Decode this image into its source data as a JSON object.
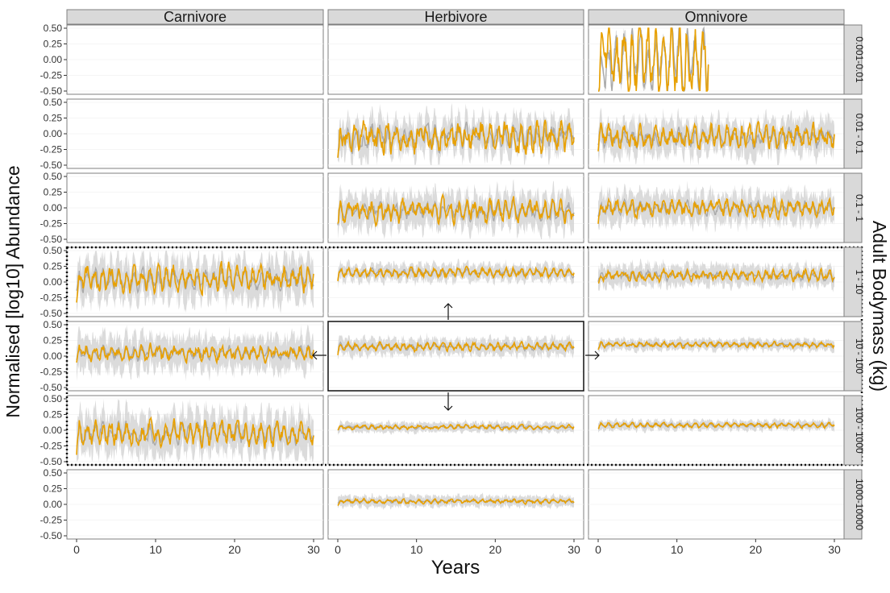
{
  "chart_data": {
    "type": "line",
    "xlabel": "Years",
    "ylabel": "Normalised [log10] Abundance",
    "facet_col_label": "Adult Bodymass (kg)",
    "columns": [
      "Carnivore",
      "Herbivore",
      "Omnivore"
    ],
    "rows": [
      "0.001-0.01",
      "0.01 - 0.1",
      "0.1 - 1",
      "1 - 10",
      "10 - 100",
      "100 - 1000",
      "1000-10000"
    ],
    "xlim": [
      0,
      30
    ],
    "ylim": [
      -0.5,
      0.5
    ],
    "x_ticks": [
      0,
      10,
      20,
      30
    ],
    "y_ticks": [
      "0.50",
      "0.25",
      "0.00",
      "-0.25",
      "-0.50"
    ],
    "series": [
      {
        "color": "#aaaaaa",
        "band_color": "#cfcfcf"
      },
      {
        "color": "#e8a000"
      }
    ],
    "panels": [
      {
        "col": "Omnivore",
        "row": "0.001-0.01",
        "present": true,
        "xmax": 14,
        "mean": 0.0,
        "amp": 0.9,
        "noise": 0.6,
        "band": 0.1
      },
      {
        "col": "Herbivore",
        "row": "0.01 - 0.1",
        "present": true,
        "mean": -0.05,
        "amp": 0.25,
        "noise": 0.3,
        "band": 0.25
      },
      {
        "col": "Omnivore",
        "row": "0.01 - 0.1",
        "present": true,
        "mean": -0.05,
        "amp": 0.2,
        "noise": 0.22,
        "band": 0.25
      },
      {
        "col": "Herbivore",
        "row": "0.1 - 1",
        "present": true,
        "mean": -0.05,
        "amp": 0.2,
        "noise": 0.2,
        "band": 0.25
      },
      {
        "col": "Omnivore",
        "row": "0.1 - 1",
        "present": true,
        "mean": 0.0,
        "amp": 0.15,
        "noise": 0.15,
        "band": 0.22
      },
      {
        "col": "Carnivore",
        "row": "1 - 10",
        "present": true,
        "mean": 0.05,
        "amp": 0.25,
        "noise": 0.22,
        "band": 0.3
      },
      {
        "col": "Herbivore",
        "row": "1 - 10",
        "present": true,
        "mean": 0.15,
        "amp": 0.1,
        "noise": 0.08,
        "band": 0.12
      },
      {
        "col": "Omnivore",
        "row": "1 - 10",
        "present": true,
        "mean": 0.1,
        "amp": 0.1,
        "noise": 0.1,
        "band": 0.15
      },
      {
        "col": "Carnivore",
        "row": "10 - 100",
        "present": true,
        "mean": 0.05,
        "amp": 0.15,
        "noise": 0.15,
        "band": 0.25
      },
      {
        "col": "Herbivore",
        "row": "10 - 100",
        "present": true,
        "mean": 0.15,
        "amp": 0.08,
        "noise": 0.07,
        "band": 0.12
      },
      {
        "col": "Omnivore",
        "row": "10 - 100",
        "present": true,
        "mean": 0.18,
        "amp": 0.05,
        "noise": 0.05,
        "band": 0.08
      },
      {
        "col": "Carnivore",
        "row": "100 - 1000",
        "present": true,
        "mean": -0.05,
        "amp": 0.25,
        "noise": 0.22,
        "band": 0.3
      },
      {
        "col": "Herbivore",
        "row": "100 - 1000",
        "present": true,
        "mean": 0.05,
        "amp": 0.04,
        "noise": 0.04,
        "band": 0.07
      },
      {
        "col": "Omnivore",
        "row": "100 - 1000",
        "present": true,
        "mean": 0.08,
        "amp": 0.05,
        "noise": 0.04,
        "band": 0.07
      },
      {
        "col": "Herbivore",
        "row": "1000-10000",
        "present": true,
        "mean": 0.05,
        "amp": 0.04,
        "noise": 0.04,
        "band": 0.08
      }
    ]
  }
}
